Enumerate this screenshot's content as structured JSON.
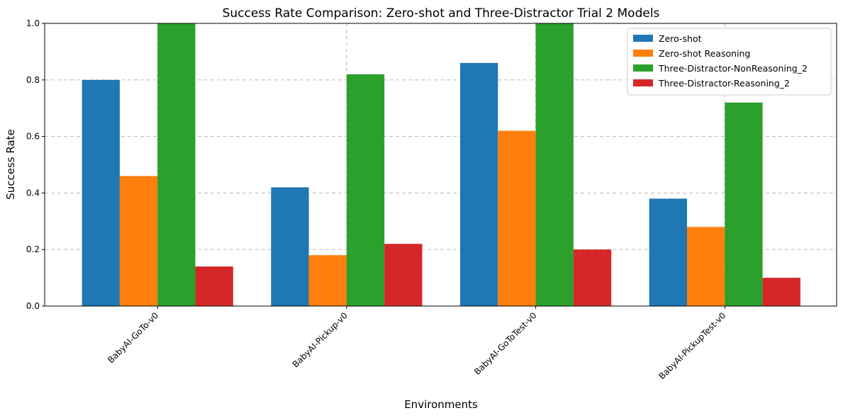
{
  "chart_data": {
    "type": "bar",
    "title": "Success Rate Comparison: Zero-shot and Three-Distractor Trial 2 Models",
    "xlabel": "Environments",
    "ylabel": "Success Rate",
    "ylim": [
      0,
      1.0
    ],
    "yticks": [
      "0.0",
      "0.2",
      "0.4",
      "0.6",
      "0.8",
      "1.0"
    ],
    "grid": true,
    "legend_position": "top-right",
    "categories": [
      "BabyAI-GoTo-v0",
      "BabyAI-Pickup-v0",
      "BabyAI-GoToTest-v0",
      "BabyAI-PickupTest-v0"
    ],
    "series": [
      {
        "name": "Zero-shot",
        "color": "#1f77b4",
        "values": [
          0.8,
          0.42,
          0.86,
          0.38
        ]
      },
      {
        "name": "Zero-shot Reasoning",
        "color": "#ff7f0e",
        "values": [
          0.46,
          0.18,
          0.62,
          0.28
        ]
      },
      {
        "name": "Three-Distractor-NonReasoning_2",
        "color": "#2ca02c",
        "values": [
          1.0,
          0.82,
          1.0,
          0.72
        ]
      },
      {
        "name": "Three-Distractor-Reasoning_2",
        "color": "#d62728",
        "values": [
          0.14,
          0.22,
          0.2,
          0.1
        ]
      }
    ]
  }
}
